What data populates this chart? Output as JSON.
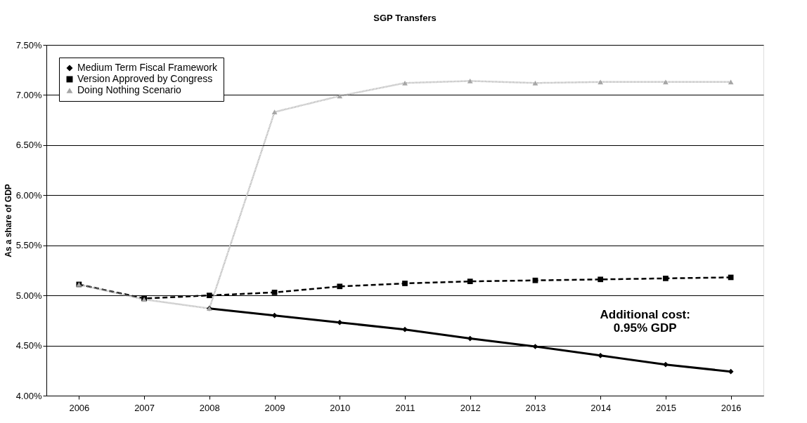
{
  "chart_data": {
    "type": "line",
    "title": "SGP Transfers",
    "ylabel": "As a share of GDP",
    "categories": [
      "2006",
      "2007",
      "2008",
      "2009",
      "2010",
      "2011",
      "2012",
      "2013",
      "2014",
      "2015",
      "2016"
    ],
    "series": [
      {
        "name": "Medium Term Fiscal Framework",
        "color": "#000000",
        "line_style": "solid",
        "marker": "diamond",
        "values": [
          null,
          null,
          4.87,
          4.8,
          4.73,
          4.66,
          4.57,
          4.49,
          4.4,
          4.31,
          4.24
        ]
      },
      {
        "name": "Version Approved by Congress",
        "color": "#000000",
        "line_style": "dashed",
        "marker": "square",
        "values": [
          5.11,
          4.97,
          5.0,
          5.03,
          5.09,
          5.12,
          5.14,
          5.15,
          5.16,
          5.17,
          5.18
        ]
      },
      {
        "name": "Doing Nothing Scenario",
        "color": "#a6a6a6",
        "line_style": "dotted",
        "marker": "triangle",
        "values": [
          5.11,
          4.96,
          4.87,
          6.83,
          6.99,
          7.12,
          7.14,
          7.12,
          7.13,
          7.13,
          7.13
        ]
      }
    ],
    "ylim": [
      4.0,
      7.5
    ],
    "yticks": [
      {
        "value": 4.0,
        "label": "4.00%"
      },
      {
        "value": 4.5,
        "label": "4.50%"
      },
      {
        "value": 5.0,
        "label": "5.00%"
      },
      {
        "value": 5.5,
        "label": "5.50%"
      },
      {
        "value": 6.0,
        "label": "6.00%"
      },
      {
        "value": 6.5,
        "label": "6.50%"
      },
      {
        "value": 7.0,
        "label": "7.00%"
      },
      {
        "value": 7.5,
        "label": "7.50%"
      }
    ],
    "grid": "y",
    "legend": "top left",
    "annotations": [
      "Additional cost:\n0.95% GDP"
    ]
  }
}
